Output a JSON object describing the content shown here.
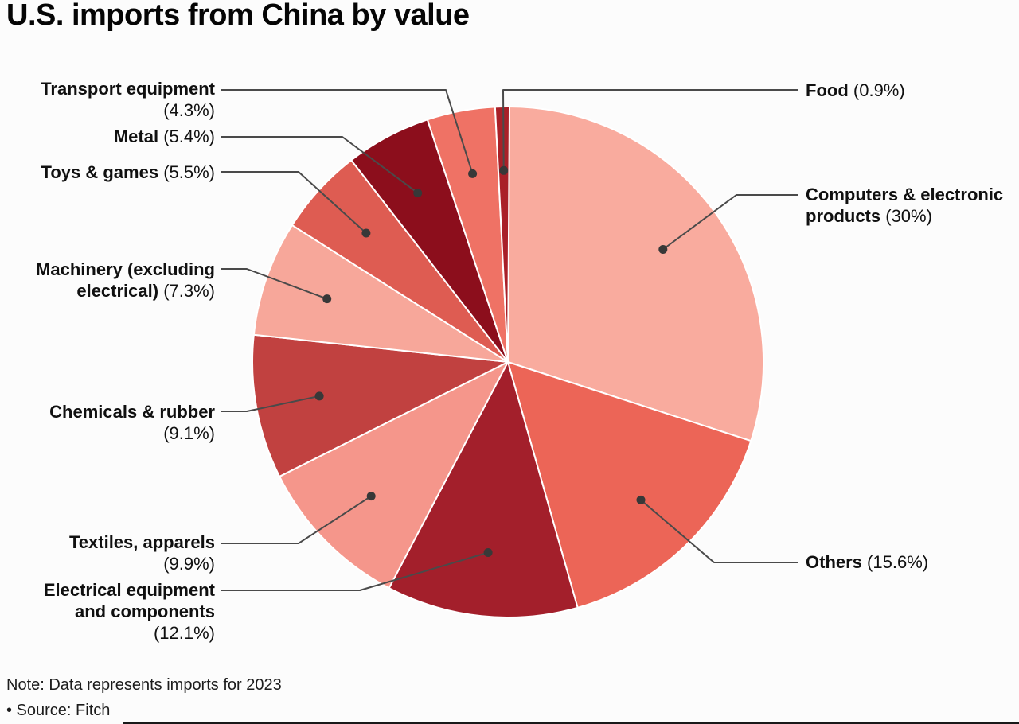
{
  "title": "U.S. imports from China by value",
  "footer": {
    "note": "Note: Data represents imports for 2023",
    "source": "• Source: Fitch"
  },
  "chart_data": {
    "type": "pie",
    "title": "U.S. imports from China by value",
    "unit": "percent share of import value",
    "start_angle_deg": 0,
    "direction": "clockwise",
    "background": "#fcfcfc",
    "slice_border_color": "#ffffff",
    "leader_line_color": "#4a4a4a",
    "dot_color": "#383838",
    "slices": [
      {
        "id": "computers",
        "label": "Computers & electronic products",
        "pct_text": "(30%)",
        "value": 30,
        "color": "#f9ab9e"
      },
      {
        "id": "others",
        "label": "Others",
        "pct_text": "(15.6%)",
        "value": 15.6,
        "color": "#ec6557"
      },
      {
        "id": "electrical",
        "label": "Electrical equipment and components",
        "pct_text": "(12.1%)",
        "value": 12.1,
        "color": "#a31f2b"
      },
      {
        "id": "textiles",
        "label": "Textiles, apparels",
        "pct_text": "(9.9%)",
        "value": 9.9,
        "color": "#f5968b"
      },
      {
        "id": "chemicals",
        "label": "Chemicals & rubber",
        "pct_text": "(9.1%)",
        "value": 9.1,
        "color": "#c14140"
      },
      {
        "id": "machinery",
        "label": "Machinery (excluding electrical)",
        "pct_text": "(7.3%)",
        "value": 7.3,
        "color": "#f7a79a"
      },
      {
        "id": "toys",
        "label": "Toys & games",
        "pct_text": "(5.5%)",
        "value": 5.5,
        "color": "#de5c52"
      },
      {
        "id": "metal",
        "label": "Metal",
        "pct_text": "(5.4%)",
        "value": 5.4,
        "color": "#8c0e1c"
      },
      {
        "id": "transport",
        "label": "Transport equipment",
        "pct_text": "(4.3%)",
        "value": 4.3,
        "color": "#ef7265"
      },
      {
        "id": "food",
        "label": "Food",
        "pct_text": "(0.9%)",
        "value": 0.9,
        "color": "#a92028"
      }
    ]
  }
}
